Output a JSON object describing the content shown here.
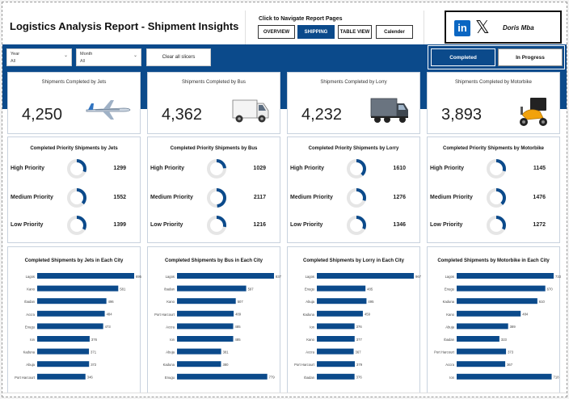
{
  "header": {
    "title": "Logistics Analysis Report - Shipment Insights",
    "nav_label": "Click to Navigate Report Pages",
    "nav_buttons": [
      {
        "label": "OVERVIEW",
        "active": false
      },
      {
        "label": "SHIPPING",
        "active": true
      },
      {
        "label": "TABLE VIEW",
        "active": false
      },
      {
        "label": "Calender",
        "active": false
      }
    ],
    "author": "Doris Mba",
    "icons": [
      "linkedin-icon",
      "x-icon"
    ]
  },
  "filters": {
    "year": {
      "label": "Year",
      "value": "All"
    },
    "month": {
      "label": "Month",
      "value": "All"
    },
    "clear_label": "Clear all slicers"
  },
  "status_toggle": {
    "completed": "Completed",
    "in_progress": "In Progress"
  },
  "colors": {
    "brand": "#0b4a8b",
    "bar": "#0b4a8b",
    "ring_bg": "#e6e6e6"
  },
  "modes": [
    {
      "kpi_title": "Shipments Completed by Jets",
      "kpi_value": "4,250",
      "icon": "airplane-icon",
      "priority_title": "Completed Priority Shipments by Jets",
      "priorities": [
        {
          "label": "High Priority",
          "value": 1299
        },
        {
          "label": "Medium Priority",
          "value": 1552
        },
        {
          "label": "Low Priority",
          "value": 1399
        }
      ],
      "city_title": "Completed Shipments by Jets in Each City",
      "chart_data": {
        "type": "bar",
        "categories": [
          "Lagos",
          "Kano",
          "Ibadan",
          "Accra",
          "Enugu",
          "Ion",
          "Kaduna",
          "Abuja",
          "Port Harcourt"
        ],
        "values": [
          695,
          581,
          496,
          484,
          473,
          376,
          371,
          372,
          346
        ]
      }
    },
    {
      "kpi_title": "Shipments Completed by Bus",
      "kpi_value": "4,362",
      "icon": "van-icon",
      "priority_title": "Completed Priority Shipments by Bus",
      "priorities": [
        {
          "label": "High Priority",
          "value": 1029
        },
        {
          "label": "Medium Priority",
          "value": 2117
        },
        {
          "label": "Low Priority",
          "value": 1216
        }
      ],
      "city_title": "Completed Shipments by Bus in Each City",
      "chart_data": {
        "type": "bar",
        "categories": [
          "Lagos",
          "Ibadan",
          "Kano",
          "Port Harcourt",
          "Accra",
          "Ion",
          "Abuja",
          "Kaduna",
          "Enugu"
        ],
        "values": [
          837,
          597,
          507,
          489,
          485,
          485,
          381,
          380,
          779
        ]
      }
    },
    {
      "kpi_title": "Shipments Completed by Lorry",
      "kpi_value": "4,232",
      "icon": "lorry-icon",
      "priority_title": "Completed Priority Shipments by Lorry",
      "priorities": [
        {
          "label": "High Priority",
          "value": 1610
        },
        {
          "label": "Medium Priority",
          "value": 1276
        },
        {
          "label": "Low Priority",
          "value": 1346
        }
      ],
      "city_title": "Completed Shipments by Lorry in Each City",
      "chart_data": {
        "type": "bar",
        "categories": [
          "Lagos",
          "Enugu",
          "Abuja",
          "Kaduna",
          "Ion",
          "Kano",
          "Accra",
          "Port Harcourt",
          "Ibadan"
        ],
        "values": [
          967,
          485,
          495,
          459,
          376,
          377,
          367,
          379,
          376
        ]
      }
    },
    {
      "kpi_title": "Shipments Completed by Motorbike",
      "kpi_value": "3,893",
      "icon": "motorbike-icon",
      "priority_title": "Completed Priority Shipments by Motorbike",
      "priorities": [
        {
          "label": "High Priority",
          "value": 1145
        },
        {
          "label": "Medium Priority",
          "value": 1476
        },
        {
          "label": "Low Priority",
          "value": 1272
        }
      ],
      "city_title": "Completed Shipments by Motorbike in Each City",
      "chart_data": {
        "type": "bar",
        "categories": [
          "Lagos",
          "Enugu",
          "Kaduna",
          "Kano",
          "Abuja",
          "Ibadan",
          "Port Harcourt",
          "Accra",
          "Ion"
        ],
        "values": [
          733,
          670,
          610,
          484,
          389,
          323,
          373,
          367,
          718
        ]
      }
    }
  ]
}
